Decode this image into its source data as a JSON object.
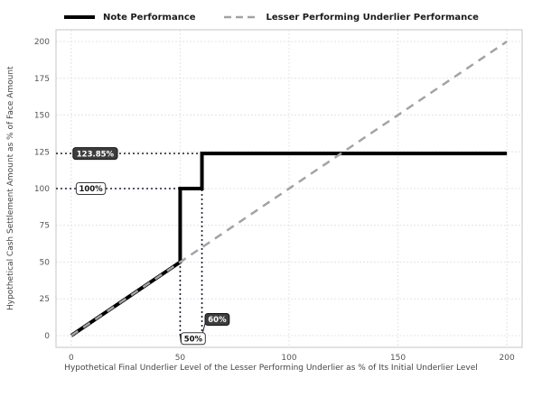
{
  "legend": {
    "items": [
      {
        "label": "Note Performance",
        "color": "#000000",
        "dash": "",
        "thickness": 4
      },
      {
        "label": "Lesser Performing Underlier Performance",
        "color": "#a3a3a3",
        "dash": "9 6",
        "thickness": 2.5
      }
    ]
  },
  "chart_data": {
    "type": "line",
    "title": "",
    "xlabel": "Hypothetical Final Underlier Level of the Lesser Performing Underlier as % of Its Initial Underlier Level",
    "ylabel": "Hypothetical Cash Settlement Amount as % of Face Amount",
    "xlim": [
      -7,
      207
    ],
    "ylim": [
      -8,
      208
    ],
    "xticks": [
      0,
      50,
      100,
      150,
      200
    ],
    "yticks": [
      0,
      25,
      50,
      75,
      100,
      125,
      150,
      175,
      200
    ],
    "grid": true,
    "legend_position": "top",
    "series": [
      {
        "name": "Note Performance",
        "x": [
          0,
          50,
          50,
          60,
          60,
          200
        ],
        "y": [
          0,
          50,
          100,
          100,
          123.85,
          123.85
        ],
        "color": "#000000",
        "width": 4,
        "dash": ""
      },
      {
        "name": "Lesser Performing Underlier Performance",
        "x": [
          0,
          200
        ],
        "y": [
          0,
          200
        ],
        "color": "#a3a3a3",
        "width": 2.5,
        "dash": "9 7"
      }
    ],
    "annotations": {
      "guide_color": "#1f1f33",
      "guides": [
        {
          "x1": -7,
          "y1": 123.85,
          "x2": 60,
          "y2": 123.85
        },
        {
          "x1": -7,
          "y1": 100,
          "x2": 50,
          "y2": 100
        },
        {
          "x1": 50,
          "y1": 0,
          "x2": 50,
          "y2": 100
        },
        {
          "x1": 60,
          "y1": 0,
          "x2": 60,
          "y2": 123.85
        }
      ],
      "labels": [
        {
          "text": "123.85%",
          "cx": 11,
          "cy": 123.85,
          "variant": "dark"
        },
        {
          "text": "100%",
          "cx": 9,
          "cy": 100,
          "variant": "light"
        },
        {
          "text": "60%",
          "cx": 67,
          "cy": 11,
          "variant": "dark",
          "leader": {
            "x": 60,
            "y": 0
          }
        },
        {
          "text": "50%",
          "cx": 56,
          "cy": -2,
          "variant": "light",
          "leader": {
            "x": 50,
            "y": 0
          }
        }
      ]
    }
  }
}
